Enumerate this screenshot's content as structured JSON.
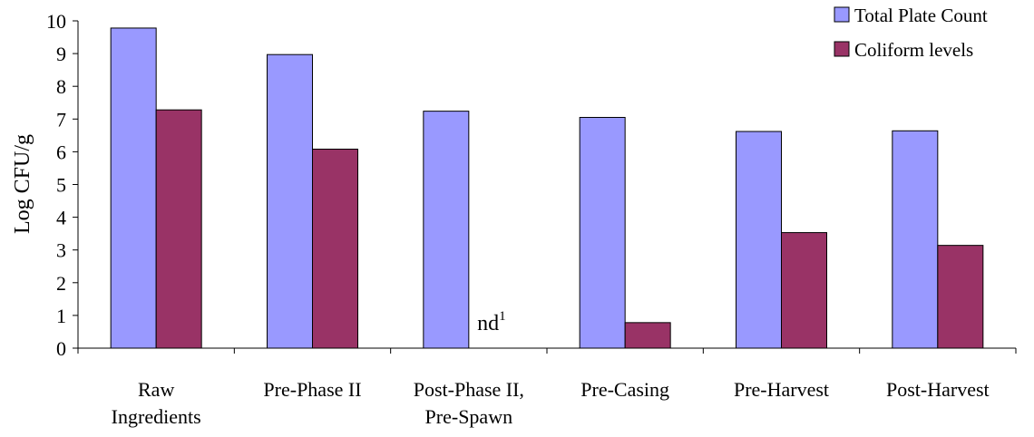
{
  "chart_data": {
    "type": "bar",
    "title": "",
    "xlabel": "",
    "ylabel": "Log CFU/g",
    "ylim": [
      0,
      10
    ],
    "yticks": [
      0,
      1,
      2,
      3,
      4,
      5,
      6,
      7,
      8,
      9,
      10
    ],
    "grid": false,
    "legend_position": "top-right",
    "categories": [
      [
        "Raw",
        "Ingredients"
      ],
      [
        "Pre-Phase II"
      ],
      [
        "Post-Phase II,",
        "Pre-Spawn"
      ],
      [
        "Pre-Casing"
      ],
      [
        "Pre-Harvest"
      ],
      [
        "Post-Harvest"
      ]
    ],
    "series": [
      {
        "name": "Total Plate Count",
        "color": "#9999ff",
        "values": [
          9.78,
          8.97,
          7.24,
          7.05,
          6.62,
          6.64
        ]
      },
      {
        "name": "Coliform levels",
        "color": "#993366",
        "values": [
          7.28,
          6.08,
          null,
          0.78,
          3.53,
          3.14
        ]
      }
    ],
    "annotations": [
      {
        "category_index": 2,
        "series_index": 1,
        "text": "nd",
        "superscript": "1"
      }
    ]
  }
}
